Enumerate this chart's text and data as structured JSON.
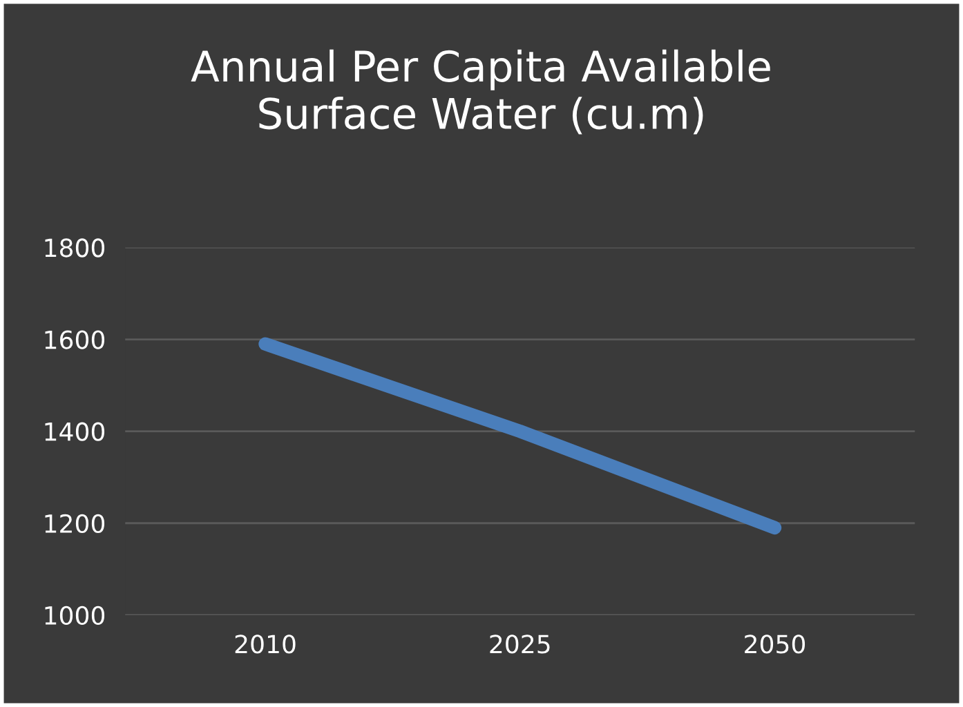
{
  "chart_data": {
    "type": "line",
    "title": "Annual Per Capita Available\nSurface Water (cu.m)",
    "categories": [
      "2010",
      "2025",
      "2050"
    ],
    "series": [
      {
        "color": "#4a7ebb",
        "values": [
          1590,
          1400,
          1190
        ]
      }
    ],
    "ylim": [
      1000,
      1800
    ],
    "yticks": [
      1000,
      1200,
      1400,
      1600,
      1800
    ],
    "grid": "y",
    "legend": false,
    "marker": "none",
    "line_style": "solid"
  }
}
